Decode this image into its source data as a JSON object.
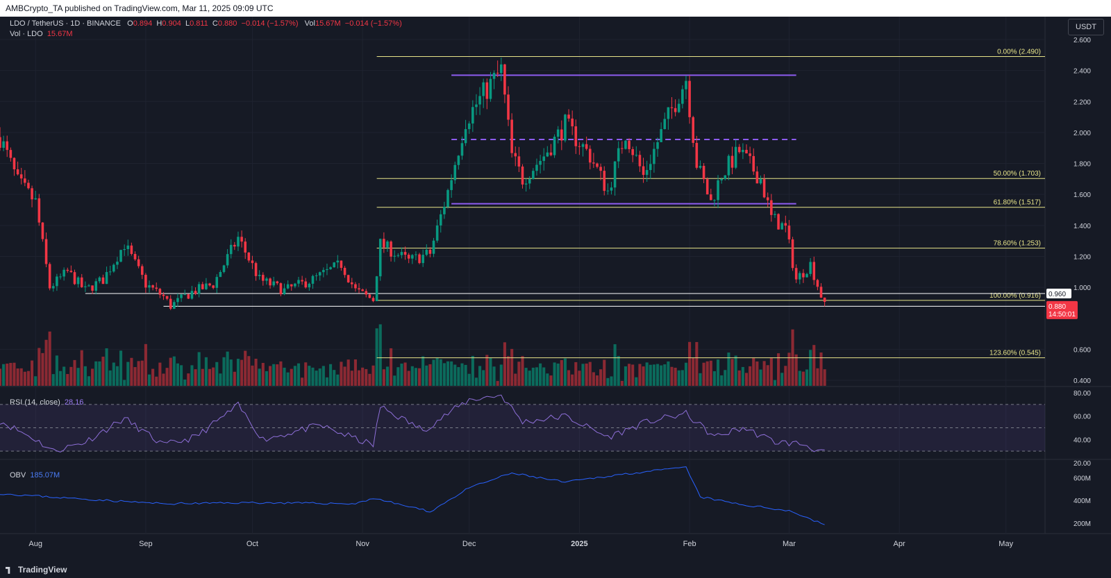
{
  "header": {
    "published": "AMBCrypto_TA published on TradingView.com, Mar 11, 2025 09:09 UTC"
  },
  "legend": {
    "symbol": "LDO / TetherUS · 1D · BINANCE",
    "o_label": "O",
    "o": "0.894",
    "h_label": "H",
    "h": "0.904",
    "l_label": "L",
    "l": "0.811",
    "c_label": "C",
    "c": "0.880",
    "change": "−0.014 (−1.57%)",
    "vol_label": "Vol",
    "vol": "15.67M",
    "vol_change": "−0.014 (−1.57%)",
    "vol_ldo_label": "Vol · LDO",
    "vol_ldo": "15.67M"
  },
  "currency": "USDT",
  "footer": {
    "logo": "TradingView"
  },
  "colors": {
    "up": "#089981",
    "down": "#f23645",
    "fib": "#e8e58a",
    "range": "#8e5cf0",
    "support": "#ffffff",
    "rsi": "#8e6fd8",
    "obv": "#2962ff",
    "bg": "#161a25"
  },
  "chart_data": [
    {
      "type": "candlestick",
      "title": "LDO / TetherUS · 1D · BINANCE",
      "ylim": [
        0.4,
        2.6
      ],
      "y_ticks": [
        "2.600",
        "2.400",
        "2.200",
        "2.000",
        "1.800",
        "1.600",
        "1.400",
        "1.200",
        "1.000",
        "0.600",
        "0.400"
      ],
      "x_ticks": [
        "Aug",
        "Sep",
        "Oct",
        "Nov",
        "Dec",
        "2025",
        "Feb",
        "Mar",
        "Apr",
        "May"
      ],
      "x_range": [
        "2024-07-22",
        "2025-05-12"
      ],
      "price_path": [
        [
          "2024-07-22",
          1.97
        ],
        [
          "2024-07-27",
          1.68
        ],
        [
          "2024-08-01",
          1.55
        ],
        [
          "2024-08-05",
          1.0
        ],
        [
          "2024-08-10",
          1.1
        ],
        [
          "2024-08-15",
          0.98
        ],
        [
          "2024-08-20",
          1.05
        ],
        [
          "2024-08-26",
          1.28
        ],
        [
          "2024-09-01",
          1.02
        ],
        [
          "2024-09-06",
          0.94
        ],
        [
          "2024-09-08",
          0.88
        ],
        [
          "2024-09-14",
          0.97
        ],
        [
          "2024-09-20",
          1.02
        ],
        [
          "2024-09-27",
          1.32
        ],
        [
          "2024-10-03",
          1.05
        ],
        [
          "2024-10-10",
          0.98
        ],
        [
          "2024-10-18",
          1.05
        ],
        [
          "2024-10-26",
          1.15
        ],
        [
          "2024-10-30",
          0.98
        ],
        [
          "2024-11-04",
          0.92
        ],
        [
          "2024-11-06",
          1.28
        ],
        [
          "2024-11-14",
          1.17
        ],
        [
          "2024-11-20",
          1.22
        ],
        [
          "2024-11-25",
          1.62
        ],
        [
          "2024-11-30",
          2.08
        ],
        [
          "2024-12-05",
          2.25
        ],
        [
          "2024-12-10",
          2.4
        ],
        [
          "2024-12-13",
          1.85
        ],
        [
          "2024-12-16",
          1.7
        ],
        [
          "2024-12-22",
          1.85
        ],
        [
          "2024-12-28",
          2.05
        ],
        [
          "2025-01-04",
          1.85
        ],
        [
          "2025-01-09",
          1.62
        ],
        [
          "2025-01-14",
          2.0
        ],
        [
          "2025-01-19",
          1.72
        ],
        [
          "2025-01-25",
          2.05
        ],
        [
          "2025-01-31",
          2.35
        ],
        [
          "2025-02-03",
          1.8
        ],
        [
          "2025-02-07",
          1.55
        ],
        [
          "2025-02-10",
          1.73
        ],
        [
          "2025-02-15",
          1.88
        ],
        [
          "2025-02-21",
          1.7
        ],
        [
          "2025-02-24",
          1.45
        ],
        [
          "2025-02-28",
          1.38
        ],
        [
          "2025-03-03",
          1.05
        ],
        [
          "2025-03-07",
          1.15
        ],
        [
          "2025-03-11",
          0.88
        ]
      ]
    },
    {
      "type": "bar",
      "title": "Vol · LDO",
      "values_M": [
        15.67
      ]
    },
    {
      "type": "line",
      "title": "RSI (14, close)",
      "current": "28.16",
      "ylim": [
        20,
        80
      ],
      "y_ticks": [
        "80.00",
        "60.00",
        "40.00",
        "20.00"
      ],
      "band": [
        30,
        70
      ],
      "path": [
        [
          "2024-07-22",
          56
        ],
        [
          "2024-08-01",
          40
        ],
        [
          "2024-08-06",
          30
        ],
        [
          "2024-08-15",
          38
        ],
        [
          "2024-08-26",
          58
        ],
        [
          "2024-09-06",
          35
        ],
        [
          "2024-09-15",
          42
        ],
        [
          "2024-09-27",
          69
        ],
        [
          "2024-10-04",
          40
        ],
        [
          "2024-10-20",
          52
        ],
        [
          "2024-11-04",
          35
        ],
        [
          "2024-11-06",
          68
        ],
        [
          "2024-11-18",
          48
        ],
        [
          "2024-12-01",
          74
        ],
        [
          "2024-12-10",
          78
        ],
        [
          "2024-12-16",
          55
        ],
        [
          "2024-12-28",
          60
        ],
        [
          "2025-01-09",
          42
        ],
        [
          "2025-01-20",
          55
        ],
        [
          "2025-01-31",
          62
        ],
        [
          "2025-02-08",
          42
        ],
        [
          "2025-02-16",
          50
        ],
        [
          "2025-02-25",
          38
        ],
        [
          "2025-03-05",
          36
        ],
        [
          "2025-03-11",
          28.16
        ]
      ]
    },
    {
      "type": "line",
      "title": "OBV",
      "current": "185.07M",
      "ylim_M": [
        150,
        700
      ],
      "y_ticks": [
        "600M",
        "400M",
        "200M"
      ],
      "path": [
        [
          "2024-07-22",
          460
        ],
        [
          "2024-08-10",
          420
        ],
        [
          "2024-09-06",
          370
        ],
        [
          "2024-10-01",
          380
        ],
        [
          "2024-10-30",
          370
        ],
        [
          "2024-11-04",
          420
        ],
        [
          "2024-11-20",
          300
        ],
        [
          "2024-12-01",
          510
        ],
        [
          "2024-12-13",
          640
        ],
        [
          "2024-12-28",
          560
        ],
        [
          "2025-01-13",
          630
        ],
        [
          "2025-01-31",
          690
        ],
        [
          "2025-02-04",
          430
        ],
        [
          "2025-02-16",
          360
        ],
        [
          "2025-03-01",
          310
        ],
        [
          "2025-03-11",
          185
        ]
      ]
    }
  ],
  "annotations": {
    "fib_levels": [
      {
        "label": "0.00% (2.490)",
        "price": 2.49
      },
      {
        "label": "50.00% (1.703)",
        "price": 1.703
      },
      {
        "label": "61.80% (1.517)",
        "price": 1.517
      },
      {
        "label": "78.60% (1.253)",
        "price": 1.253
      },
      {
        "label": "100.00% (0.916)",
        "price": 0.916
      },
      {
        "label": "123.60% (0.545)",
        "price": 0.545
      }
    ],
    "fib_start_date": "2024-11-05",
    "range_box": {
      "start": "2024-11-26",
      "end": "2025-03-03",
      "high": 2.37,
      "mid": 1.955,
      "low": 1.54
    },
    "supports": [
      {
        "start": "2024-08-15",
        "end": "2025-03-11",
        "price": 0.96
      },
      {
        "start": "2024-09-06",
        "end": "2025-03-11",
        "price": 0.878
      }
    ],
    "price_labels": [
      {
        "price": 0.96,
        "text": "0.960"
      },
      {
        "price": 0.878,
        "text": "0.878"
      }
    ],
    "last_price": {
      "price": 0.88,
      "text": "0.880",
      "countdown": "14:50:01"
    }
  }
}
